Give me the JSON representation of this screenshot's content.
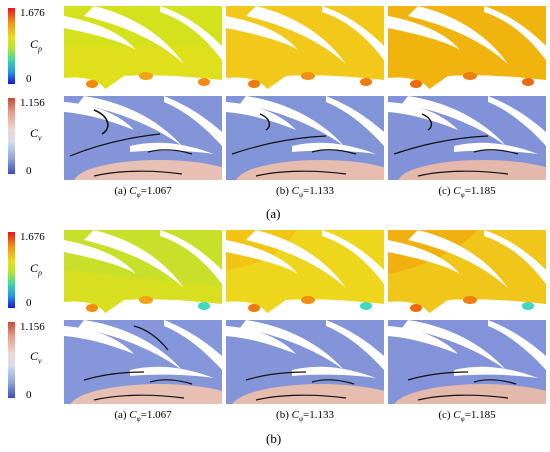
{
  "colorbars": {
    "cp": {
      "symbol": "C",
      "sub": "p",
      "max": "1.676",
      "min": "0"
    },
    "cv": {
      "symbol": "C",
      "sub": "v",
      "max": "1.156",
      "min": "0"
    }
  },
  "section_a": {
    "label": "(a)",
    "captions": [
      {
        "prefix": "(a) ",
        "sym": "C",
        "sub": "φ",
        "value": "=1.067"
      },
      {
        "prefix": "(b) ",
        "sym": "C",
        "sub": "φ",
        "value": "=1.133"
      },
      {
        "prefix": "(c) ",
        "sym": "C",
        "sub": "φ",
        "value": "=1.185"
      }
    ]
  },
  "section_b": {
    "label": "(b)",
    "captions": [
      {
        "prefix": "(a) ",
        "sym": "C",
        "sub": "φ",
        "value": "=1.067"
      },
      {
        "prefix": "(b) ",
        "sym": "C",
        "sub": "φ",
        "value": "=1.133"
      },
      {
        "prefix": "(c) ",
        "sym": "C",
        "sub": "φ",
        "value": "=1.185"
      }
    ]
  },
  "colors": {
    "pressure_low": "#c8e22a",
    "pressure_mid": "#f0cf12",
    "pressure_high": "#f1b30e",
    "velocity_bg": "#7f8fd6",
    "velocity_hub": "#e7b8ad",
    "streamline": "#111111"
  }
}
